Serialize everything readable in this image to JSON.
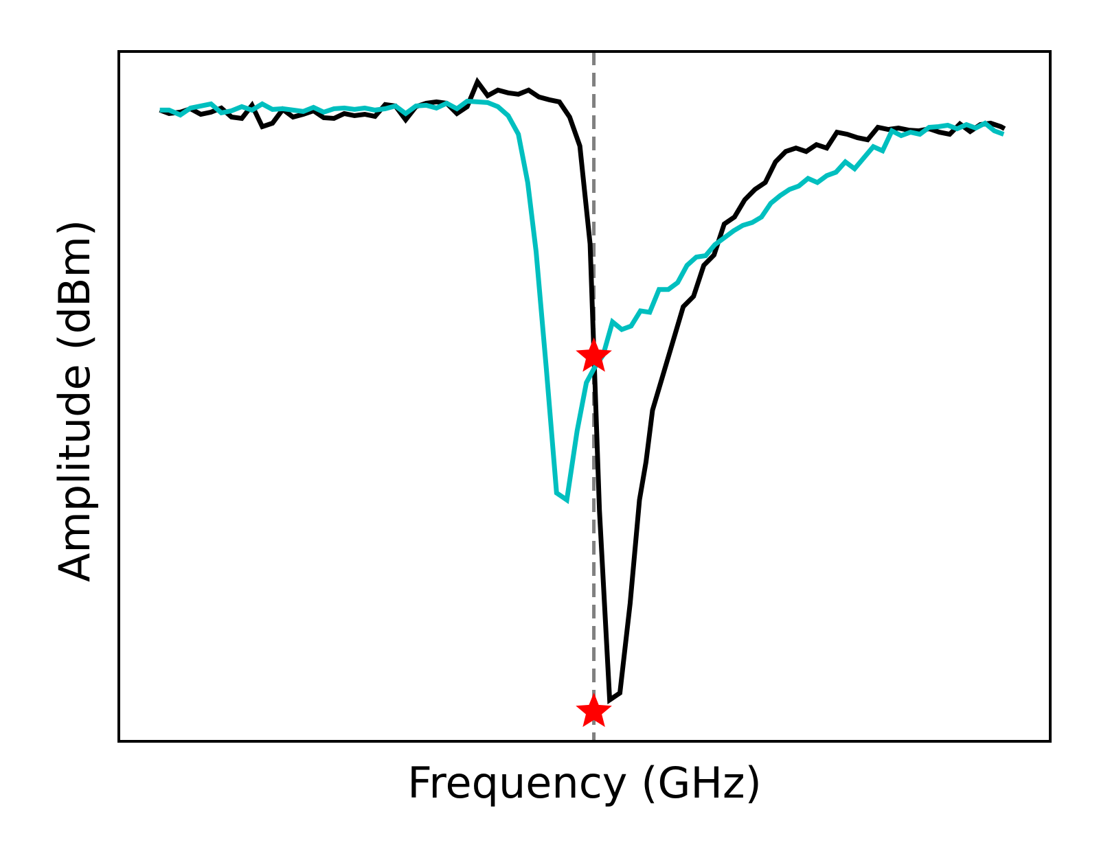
{
  "chart_data": {
    "type": "line",
    "xlabel": "Frequency (GHz)",
    "ylabel": "Amplitude (dBm)",
    "xlim": [
      0,
      100
    ],
    "ylim": [
      0,
      100
    ],
    "x_ticks_shown": false,
    "y_ticks_shown": false,
    "grid": false,
    "legend": "none",
    "vline": {
      "x": 51,
      "color": "#808080",
      "style": "dashed"
    },
    "series": [
      {
        "color": "#000000",
        "x": [
          4.4,
          5.4,
          6.6,
          7.7,
          8.8,
          9.9,
          11.0,
          12.1,
          13.2,
          14.3,
          15.4,
          16.5,
          17.6,
          18.7,
          19.8,
          20.9,
          22.0,
          23.1,
          24.2,
          25.3,
          26.4,
          27.5,
          28.6,
          29.7,
          30.8,
          31.9,
          33.0,
          34.1,
          35.2,
          36.3,
          37.4,
          38.5,
          39.6,
          40.7,
          41.8,
          42.9,
          44.0,
          45.1,
          46.2,
          47.3,
          48.4,
          49.5,
          50.6,
          51.6,
          52.7,
          53.8,
          54.9,
          55.9,
          56.6,
          57.3,
          58.4,
          59.5,
          60.6,
          61.7,
          62.8,
          63.9,
          65.0,
          66.1,
          67.2,
          68.3,
          69.4,
          70.5,
          71.6,
          72.7,
          73.8,
          74.9,
          76.0,
          77.1,
          78.2,
          79.3,
          80.4,
          81.5,
          82.6,
          83.7,
          84.8,
          85.9,
          87.0,
          88.1,
          89.2,
          90.3,
          91.4,
          92.5,
          93.6,
          94.7,
          95.1
        ],
        "y": [
          91.5,
          91.0,
          91.2,
          91.7,
          90.9,
          91.2,
          91.8,
          90.5,
          90.3,
          92.2,
          89.1,
          89.6,
          91.6,
          90.5,
          90.9,
          91.4,
          90.4,
          90.3,
          91.0,
          90.7,
          90.9,
          90.6,
          92.3,
          92.1,
          90.1,
          92.0,
          92.5,
          92.7,
          92.5,
          91.0,
          92.0,
          95.6,
          93.6,
          94.4,
          94.0,
          93.8,
          94.4,
          93.4,
          93.0,
          92.7,
          90.5,
          86.3,
          72.1,
          33.5,
          6.0,
          7.0,
          20.0,
          35.0,
          40.5,
          48.0,
          53.0,
          58.0,
          63.0,
          64.5,
          69.0,
          70.5,
          75.0,
          76.0,
          78.5,
          80.0,
          81.0,
          84.0,
          85.5,
          86.0,
          85.5,
          86.5,
          86.0,
          88.3,
          88.0,
          87.5,
          87.2,
          89.0,
          88.7,
          88.9,
          88.6,
          88.5,
          88.8,
          88.3,
          88.0,
          89.5,
          88.4,
          89.4,
          89.6,
          89.1,
          88.8
        ]
      },
      {
        "color": "#00BFBF",
        "x": [
          4.4,
          5.4,
          6.6,
          7.7,
          8.8,
          9.9,
          11.0,
          12.1,
          13.2,
          14.3,
          15.4,
          16.5,
          17.6,
          18.7,
          19.8,
          20.9,
          22.0,
          23.1,
          24.2,
          25.3,
          26.4,
          27.5,
          28.6,
          29.7,
          30.8,
          31.9,
          33.0,
          34.1,
          35.2,
          36.3,
          37.4,
          38.5,
          39.6,
          40.7,
          41.8,
          42.9,
          43.9,
          44.8,
          45.9,
          47.0,
          48.1,
          49.2,
          50.2,
          51.0,
          52.0,
          53.0,
          54.0,
          55.0,
          56.0,
          57.0,
          58.0,
          59.0,
          60.0,
          61.0,
          62.0,
          63.0,
          64.0,
          65.0,
          66.0,
          67.0,
          68.0,
          69.0,
          70.0,
          71.0,
          72.0,
          73.0,
          74.0,
          75.0,
          76.0,
          77.0,
          78.0,
          79.0,
          80.0,
          81.0,
          82.0,
          83.0,
          84.0,
          85.0,
          86.0,
          87.0,
          88.0,
          89.0,
          90.0,
          91.0,
          92.0,
          93.0,
          94.0,
          95.0
        ],
        "y": [
          91.5,
          91.5,
          90.8,
          91.8,
          92.1,
          92.4,
          91.1,
          91.4,
          92.0,
          91.5,
          92.4,
          91.6,
          91.7,
          91.5,
          91.3,
          91.9,
          91.2,
          91.7,
          91.8,
          91.6,
          91.8,
          91.5,
          91.7,
          92.1,
          91.0,
          92.1,
          92.2,
          91.8,
          92.5,
          91.7,
          92.8,
          92.7,
          92.6,
          92.0,
          90.7,
          88.0,
          81.0,
          71.0,
          54.0,
          36.0,
          35.0,
          45.0,
          52.0,
          54.0,
          56.0,
          60.8,
          59.7,
          60.2,
          62.4,
          62.2,
          65.5,
          65.5,
          66.5,
          69.0,
          70.2,
          70.4,
          72.0,
          73.0,
          74.0,
          74.8,
          75.2,
          76.0,
          78.0,
          79.1,
          80.0,
          80.5,
          81.6,
          81.0,
          82.0,
          82.5,
          84.0,
          83.0,
          84.6,
          86.2,
          85.6,
          88.5,
          87.8,
          88.3,
          88.0,
          89.0,
          89.1,
          89.3,
          88.8,
          89.4,
          88.9,
          89.6,
          88.5,
          88.0
        ]
      }
    ],
    "markers": [
      {
        "shape": "star",
        "color": "#FF0000",
        "x": 51,
        "y": 55.8
      },
      {
        "shape": "star",
        "color": "#FF0000",
        "x": 51,
        "y": 4.3
      }
    ]
  }
}
